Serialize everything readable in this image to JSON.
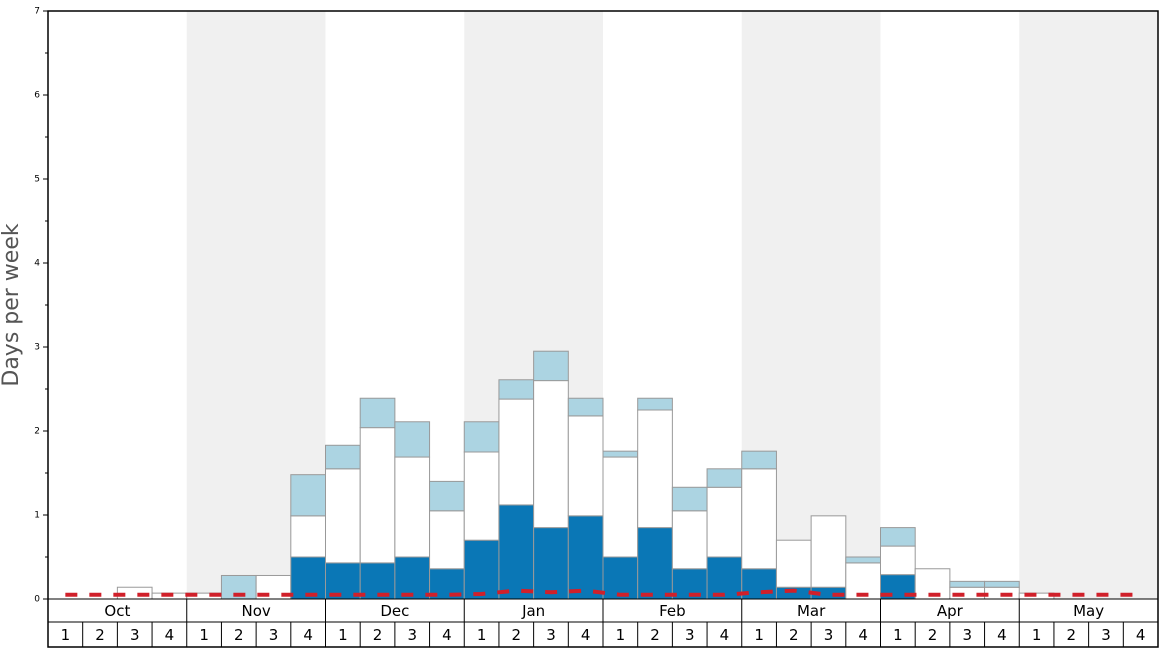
{
  "chart_data": {
    "type": "stacked-bar",
    "y_label": "Days per week",
    "months": [
      "Oct",
      "Nov",
      "Dec",
      "Jan",
      "Feb",
      "Mar",
      "Apr",
      "May"
    ],
    "weeks": [
      "1",
      "2",
      "3",
      "4"
    ],
    "ylim": [
      0,
      7
    ],
    "yticks": [
      0,
      1,
      2,
      3,
      4,
      5,
      6,
      7
    ],
    "yminorticks": [
      0.5,
      1.5,
      2.5,
      3.5,
      4.5,
      5.5,
      6.5
    ],
    "series": [
      {
        "color": "#0a77b6",
        "values": [
          0,
          0,
          0,
          0,
          0,
          0,
          0,
          0.5,
          0.43,
          0.43,
          0.5,
          0.36,
          0.7,
          1.12,
          0.85,
          0.99,
          0.5,
          0.85,
          0.36,
          0.5,
          0.36,
          0.14,
          0.14,
          0,
          0.29,
          0,
          0,
          0,
          0,
          0,
          0,
          0
        ]
      },
      {
        "color": "#ffffff",
        "values": [
          0,
          0,
          0.14,
          0.07,
          0.07,
          0,
          0.28,
          0.49,
          1.12,
          1.61,
          1.19,
          0.69,
          1.05,
          1.26,
          1.75,
          1.19,
          1.19,
          1.4,
          0.69,
          0.83,
          1.19,
          0.56,
          0.85,
          0.43,
          0.34,
          0.36,
          0.14,
          0.14,
          0.07,
          0,
          0,
          0
        ]
      },
      {
        "color": "#acd4e2",
        "values": [
          0,
          0,
          0,
          0,
          0,
          0.28,
          0,
          0.49,
          0.28,
          0.35,
          0.42,
          0.35,
          0.36,
          0.23,
          0.35,
          0.21,
          0.07,
          0.14,
          0.28,
          0.22,
          0.21,
          0,
          0,
          0.07,
          0.22,
          0,
          0.07,
          0.07,
          0,
          0,
          0,
          0
        ]
      }
    ],
    "line": {
      "color": "#d0202a",
      "values": [
        0.05,
        0.05,
        0.05,
        0.05,
        0.05,
        0.05,
        0.05,
        0.05,
        0.05,
        0.05,
        0.05,
        0.05,
        0.06,
        0.1,
        0.08,
        0.1,
        0.05,
        0.05,
        0.05,
        0.05,
        0.08,
        0.1,
        0.05,
        0.05,
        0.05,
        0.05,
        0.05,
        0.05,
        0.05,
        0.05,
        0.05,
        0.05
      ]
    }
  }
}
